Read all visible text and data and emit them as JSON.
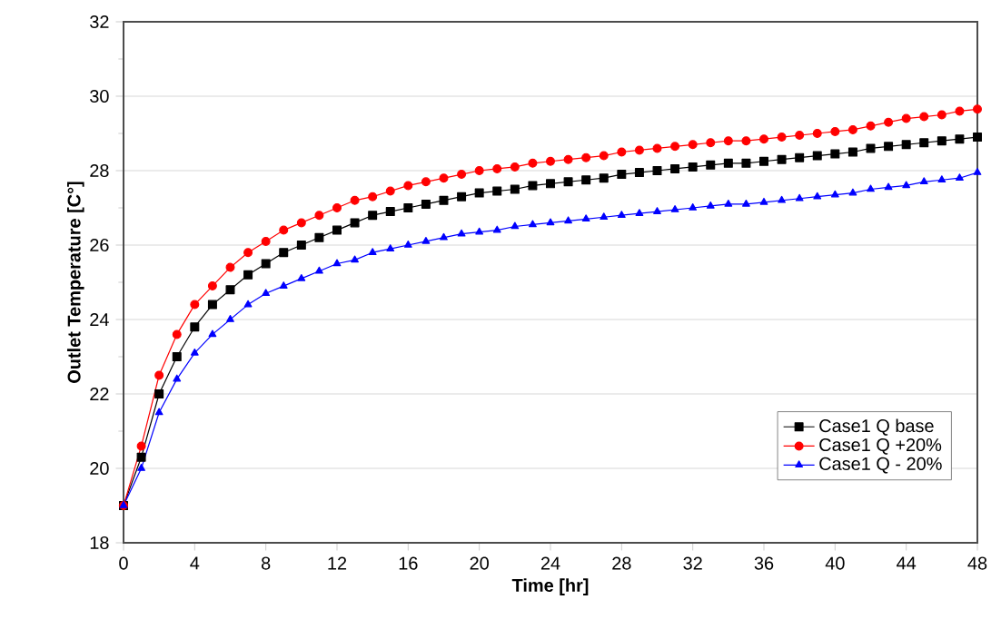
{
  "chart_data": {
    "type": "line",
    "xlabel": "Time [hr]",
    "ylabel": "Outlet Temperature [C°]",
    "x": [
      0,
      1,
      2,
      3,
      4,
      5,
      6,
      7,
      8,
      9,
      10,
      11,
      12,
      13,
      14,
      15,
      16,
      17,
      18,
      19,
      20,
      21,
      22,
      23,
      24,
      25,
      26,
      27,
      28,
      29,
      30,
      31,
      32,
      33,
      34,
      35,
      36,
      37,
      38,
      39,
      40,
      41,
      42,
      43,
      44,
      45,
      46,
      47,
      48
    ],
    "series": [
      {
        "name": "Case1 Q base",
        "color": "#000000",
        "marker": "square",
        "values": [
          19.0,
          20.3,
          22.0,
          23.0,
          23.8,
          24.4,
          24.8,
          25.2,
          25.5,
          25.8,
          26.0,
          26.2,
          26.4,
          26.6,
          26.8,
          26.9,
          27.0,
          27.1,
          27.2,
          27.3,
          27.4,
          27.45,
          27.5,
          27.6,
          27.65,
          27.7,
          27.75,
          27.8,
          27.9,
          27.95,
          28.0,
          28.05,
          28.1,
          28.15,
          28.2,
          28.2,
          28.25,
          28.3,
          28.35,
          28.4,
          28.45,
          28.5,
          28.6,
          28.65,
          28.7,
          28.75,
          28.8,
          28.85,
          28.9
        ]
      },
      {
        "name": "Case1 Q +20%",
        "color": "#ff0000",
        "marker": "circle",
        "values": [
          19.0,
          20.6,
          22.5,
          23.6,
          24.4,
          24.9,
          25.4,
          25.8,
          26.1,
          26.4,
          26.6,
          26.8,
          27.0,
          27.2,
          27.3,
          27.45,
          27.6,
          27.7,
          27.8,
          27.9,
          28.0,
          28.05,
          28.1,
          28.2,
          28.25,
          28.3,
          28.35,
          28.4,
          28.5,
          28.55,
          28.6,
          28.65,
          28.7,
          28.75,
          28.8,
          28.8,
          28.85,
          28.9,
          28.95,
          29.0,
          29.05,
          29.1,
          29.2,
          29.3,
          29.4,
          29.45,
          29.5,
          29.6,
          29.65
        ]
      },
      {
        "name": "Case1 Q - 20%",
        "color": "#0000ff",
        "marker": "triangle",
        "values": [
          19.0,
          20.0,
          21.5,
          22.4,
          23.1,
          23.6,
          24.0,
          24.4,
          24.7,
          24.9,
          25.1,
          25.3,
          25.5,
          25.6,
          25.8,
          25.9,
          26.0,
          26.1,
          26.2,
          26.3,
          26.35,
          26.4,
          26.5,
          26.55,
          26.6,
          26.65,
          26.7,
          26.75,
          26.8,
          26.85,
          26.9,
          26.95,
          27.0,
          27.05,
          27.1,
          27.1,
          27.15,
          27.2,
          27.25,
          27.3,
          27.35,
          27.4,
          27.5,
          27.55,
          27.6,
          27.7,
          27.75,
          27.8,
          27.95
        ]
      }
    ],
    "xlim": [
      0,
      48
    ],
    "ylim": [
      18,
      32
    ],
    "xticks": [
      0,
      4,
      8,
      12,
      16,
      20,
      24,
      28,
      32,
      36,
      40,
      44,
      48
    ],
    "yticks": [
      18,
      20,
      22,
      24,
      26,
      28,
      30,
      32
    ],
    "grid": "y",
    "legend": "bottom right",
    "line_style": "solid"
  }
}
